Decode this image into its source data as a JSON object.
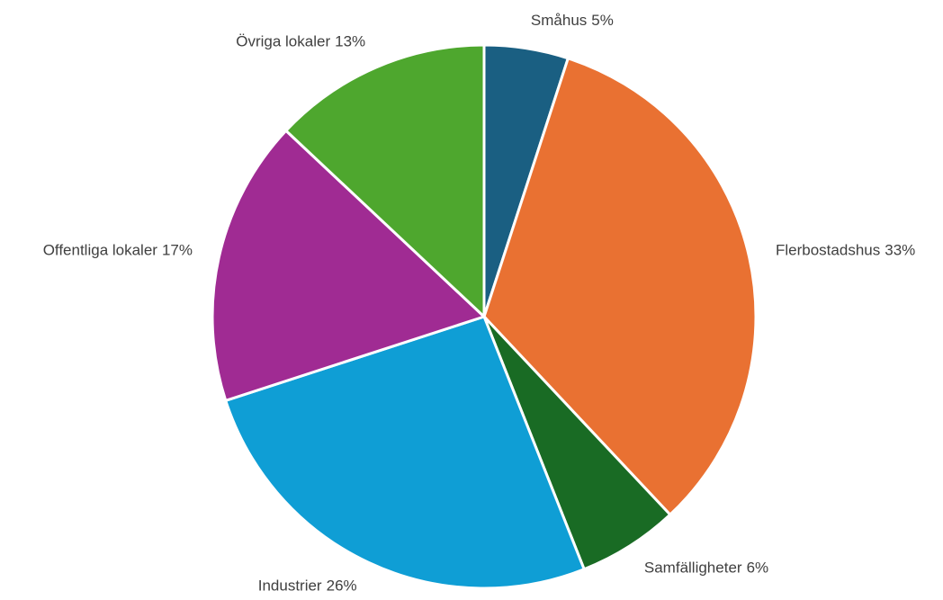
{
  "chart_data": {
    "type": "pie",
    "categories": [
      "Småhus",
      "Flerbostadshus",
      "Samfälligheter",
      "Industrier",
      "Offentliga lokaler",
      "Övriga lokaler"
    ],
    "values": [
      5,
      33,
      6,
      26,
      17,
      13
    ],
    "value_labels": [
      "5%",
      "33%",
      "6%",
      "26%",
      "17%",
      "13%"
    ],
    "colors": [
      "#1a5f82",
      "#e97132",
      "#196b24",
      "#0f9ed5",
      "#a02b93",
      "#4ea72e"
    ]
  }
}
